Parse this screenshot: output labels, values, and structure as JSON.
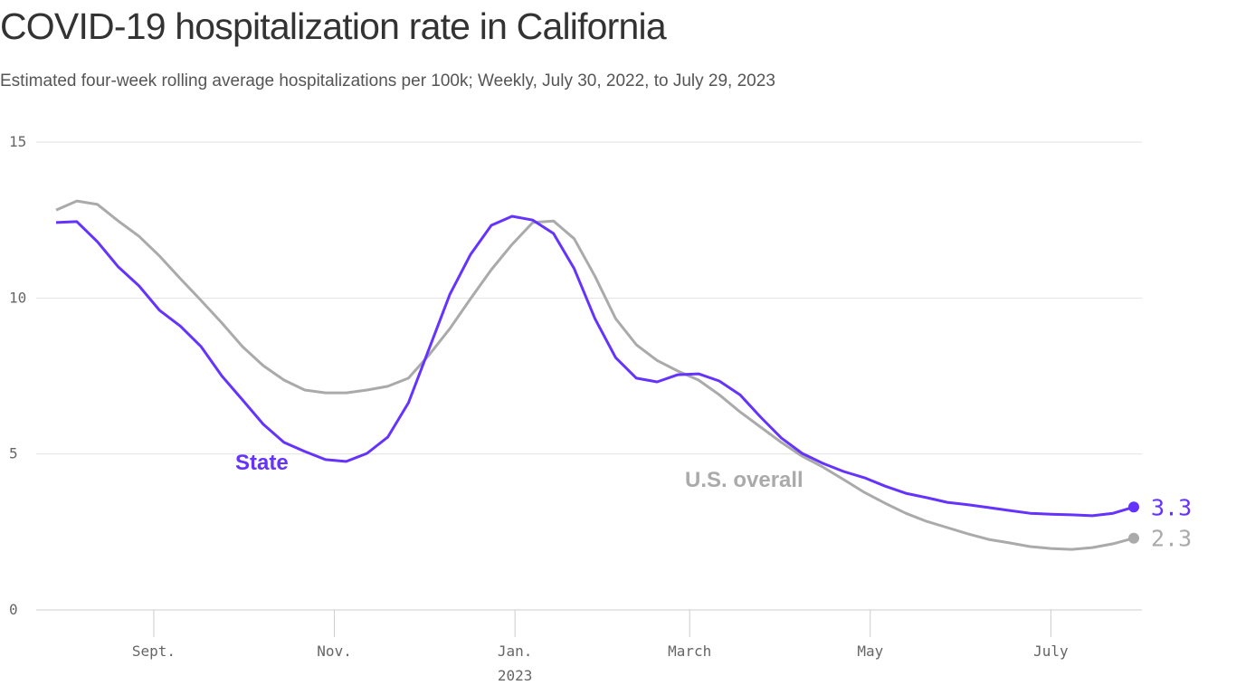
{
  "chart_data": {
    "type": "line",
    "title": "COVID-19 hospitalization rate in California",
    "subtitle": "Estimated four-week rolling average hospitalizations per 100k; Weekly, July 30, 2022, to July 29, 2023",
    "xlabel": "",
    "ylabel": "",
    "ylim": [
      0,
      15
    ],
    "yticks": [
      0,
      5,
      10,
      15
    ],
    "grid": true,
    "xticks": [
      {
        "date": "2022-09-01",
        "label": "Sept."
      },
      {
        "date": "2022-11-01",
        "label": "Nov."
      },
      {
        "date": "2023-01-01",
        "label": "Jan.",
        "sublabel": "2023"
      },
      {
        "date": "2023-03-01",
        "label": "March"
      },
      {
        "date": "2023-05-01",
        "label": "May"
      },
      {
        "date": "2023-07-01",
        "label": "July"
      }
    ],
    "x": [
      "2022-07-30",
      "2022-08-06",
      "2022-08-13",
      "2022-08-20",
      "2022-08-27",
      "2022-09-03",
      "2022-09-10",
      "2022-09-17",
      "2022-09-24",
      "2022-10-01",
      "2022-10-08",
      "2022-10-15",
      "2022-10-22",
      "2022-10-29",
      "2022-11-05",
      "2022-11-12",
      "2022-11-19",
      "2022-11-26",
      "2022-12-03",
      "2022-12-10",
      "2022-12-17",
      "2022-12-24",
      "2022-12-31",
      "2023-01-07",
      "2023-01-14",
      "2023-01-21",
      "2023-01-28",
      "2023-02-04",
      "2023-02-11",
      "2023-02-18",
      "2023-02-25",
      "2023-03-04",
      "2023-03-11",
      "2023-03-18",
      "2023-03-25",
      "2023-04-01",
      "2023-04-08",
      "2023-04-15",
      "2023-04-22",
      "2023-04-29",
      "2023-05-06",
      "2023-05-13",
      "2023-05-20",
      "2023-05-27",
      "2023-06-03",
      "2023-06-10",
      "2023-06-17",
      "2023-06-24",
      "2023-07-01",
      "2023-07-08",
      "2023-07-15",
      "2023-07-22",
      "2023-07-29"
    ],
    "series": [
      {
        "name": "U.S. overall",
        "color": "#aaaaaa",
        "end_label": "2.3",
        "values": [
          12.82,
          13.11,
          13.0,
          12.47,
          11.98,
          11.34,
          10.62,
          9.92,
          9.2,
          8.44,
          7.83,
          7.37,
          7.05,
          6.96,
          6.96,
          7.05,
          7.17,
          7.43,
          8.18,
          9.02,
          9.98,
          10.91,
          11.72,
          12.42,
          12.47,
          11.9,
          10.7,
          9.34,
          8.5,
          8.0,
          7.66,
          7.37,
          6.9,
          6.35,
          5.86,
          5.37,
          4.93,
          4.58,
          4.18,
          3.77,
          3.42,
          3.1,
          2.84,
          2.64,
          2.44,
          2.26,
          2.15,
          2.03,
          1.97,
          1.94,
          2.0,
          2.12,
          2.3
        ]
      },
      {
        "name": "State",
        "color": "#6533ff",
        "end_label": "3.3",
        "values": [
          12.42,
          12.45,
          11.8,
          11.0,
          10.39,
          9.6,
          9.1,
          8.44,
          7.5,
          6.73,
          5.95,
          5.37,
          5.08,
          4.82,
          4.76,
          5.02,
          5.54,
          6.64,
          8.38,
          10.12,
          11.4,
          12.33,
          12.62,
          12.5,
          12.07,
          10.94,
          9.34,
          8.09,
          7.43,
          7.31,
          7.54,
          7.57,
          7.34,
          6.9,
          6.18,
          5.51,
          5.02,
          4.7,
          4.44,
          4.24,
          3.97,
          3.74,
          3.6,
          3.45,
          3.37,
          3.28,
          3.19,
          3.1,
          3.07,
          3.05,
          3.02,
          3.1,
          3.3
        ]
      }
    ]
  }
}
